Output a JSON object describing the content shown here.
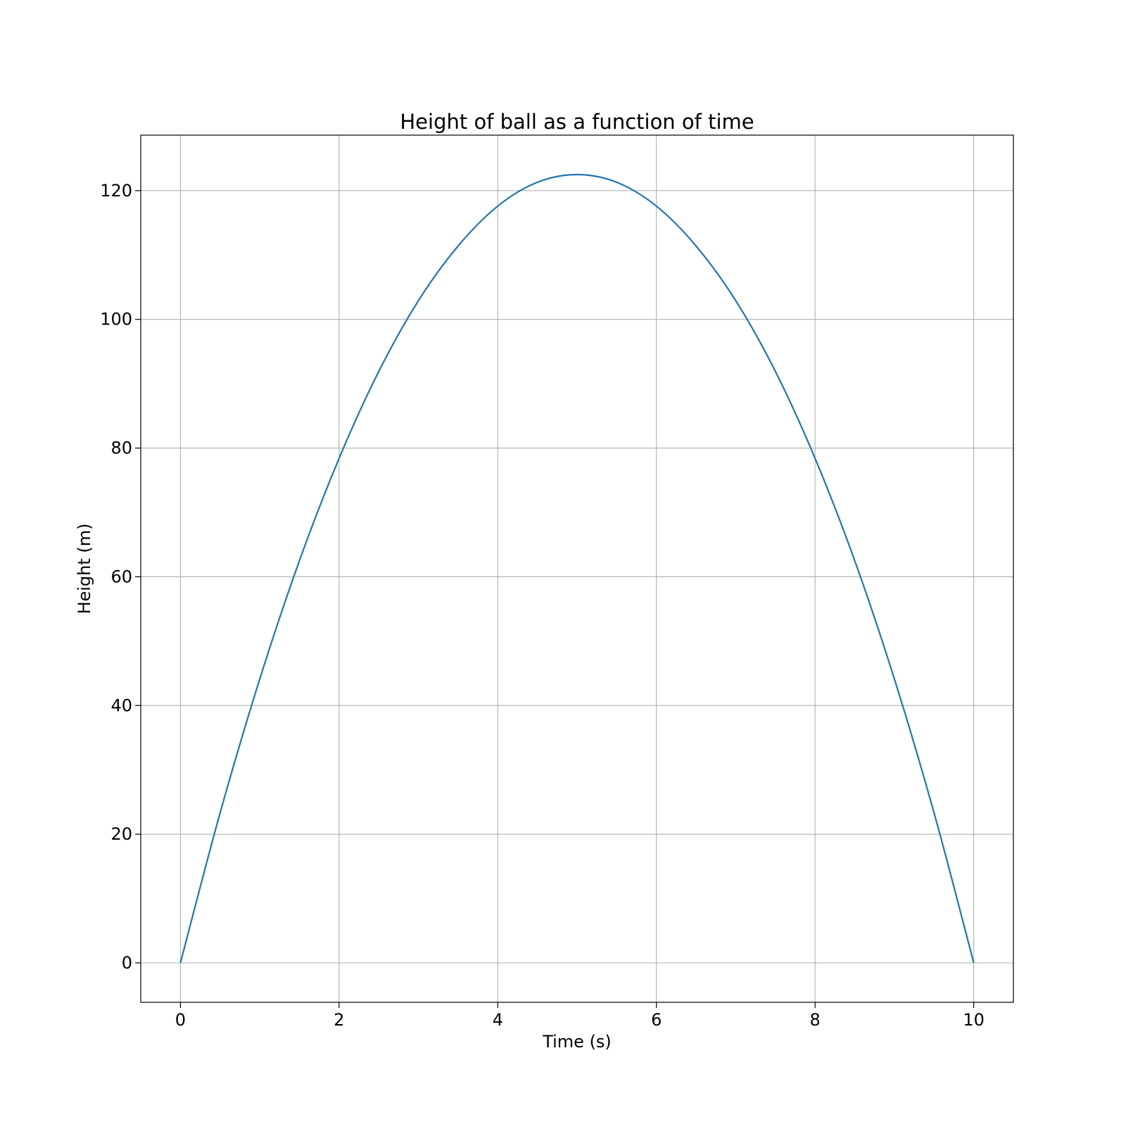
{
  "chart_data": {
    "type": "line",
    "title": "Height of ball as a function of time",
    "xlabel": "Time (s)",
    "ylabel": "Height (m)",
    "xlim": [
      -0.5,
      10.5
    ],
    "ylim": [
      -6.125,
      128.625
    ],
    "xticks": [
      0,
      2,
      4,
      6,
      8,
      10
    ],
    "yticks": [
      0,
      20,
      40,
      60,
      80,
      100,
      120
    ],
    "grid": true,
    "legend": "none",
    "series": [
      {
        "color": "#1f77b4",
        "x": [
          0,
          0.5,
          1,
          1.5,
          2,
          2.5,
          3,
          3.5,
          4,
          4.5,
          5,
          5.5,
          6,
          6.5,
          7,
          7.5,
          8,
          8.5,
          9,
          9.5,
          10
        ],
        "y": [
          0,
          23.3,
          44.1,
          62.5,
          78.4,
          91.9,
          102.9,
          111.4,
          117.6,
          121.3,
          122.5,
          121.3,
          117.6,
          111.4,
          102.9,
          91.9,
          78.4,
          62.5,
          44.1,
          23.3,
          0
        ]
      }
    ]
  }
}
